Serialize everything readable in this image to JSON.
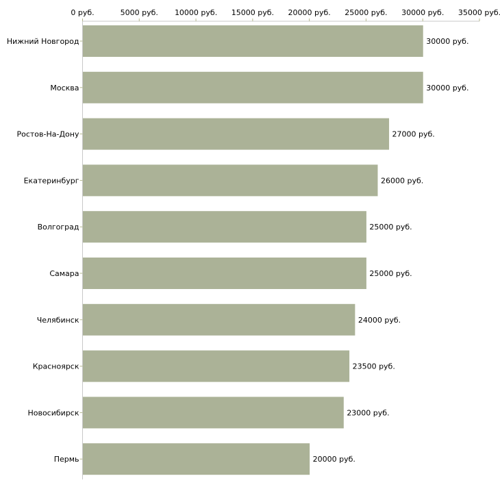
{
  "chart_data": {
    "type": "bar",
    "orientation": "horizontal",
    "title": "",
    "xlabel": "",
    "ylabel": "",
    "xlim": [
      0,
      35000
    ],
    "x_ticks": [
      0,
      5000,
      10000,
      15000,
      20000,
      25000,
      30000,
      35000
    ],
    "x_tick_labels": [
      "0 руб.",
      "5000 руб.",
      "10000 руб.",
      "15000 руб.",
      "20000 руб.",
      "25000 руб.",
      "30000 руб.",
      "35000 руб."
    ],
    "categories": [
      "Нижний Новгород",
      "Москва",
      "Ростов-На-Дону",
      "Екатеринбург",
      "Волгоград",
      "Самара",
      "Челябинск",
      "Красноярск",
      "Новосибирск",
      "Пермь"
    ],
    "values": [
      30000,
      30000,
      27000,
      26000,
      25000,
      25000,
      24000,
      23500,
      23000,
      20000
    ],
    "data_labels": [
      "30000 руб.",
      "30000 руб.",
      "27000 руб.",
      "26000 руб.",
      "25000 руб.",
      "25000 руб.",
      "24000 руб.",
      "23500 руб.",
      "23000 руб.",
      "20000 руб."
    ],
    "bar_color": "#abb297",
    "axis_color": "#c8c8c8",
    "tick_color": "#b5b88f"
  }
}
